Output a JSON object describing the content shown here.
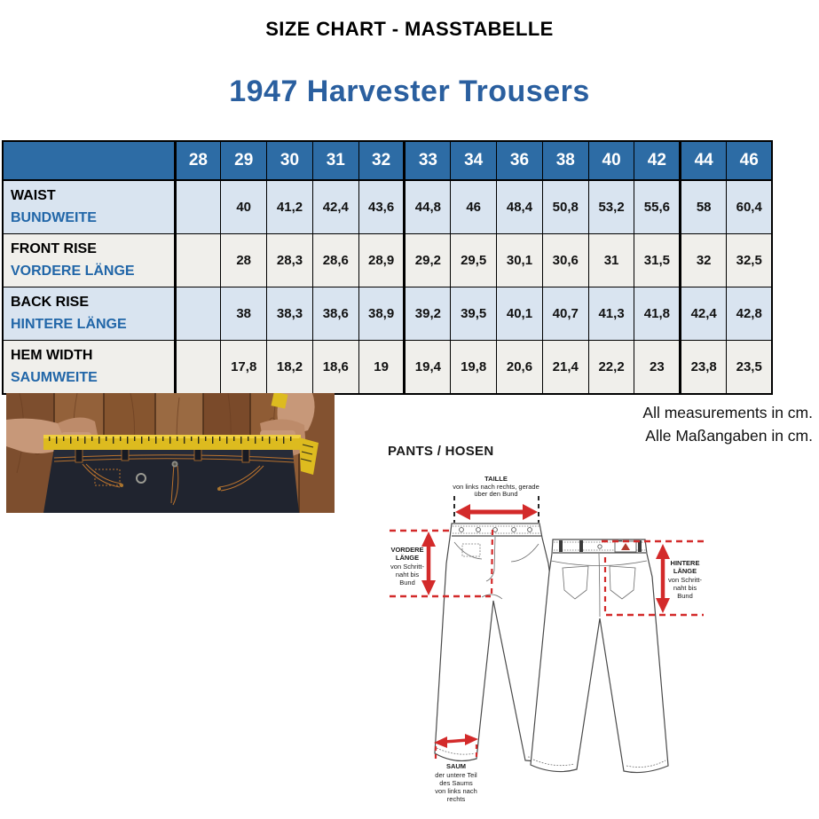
{
  "page": {
    "title": "SIZE CHART - MASSTABELLE",
    "subtitle": "1947 Harvester Trousers"
  },
  "colors": {
    "header_bg": "#2d6ca5",
    "row_blue": "#d9e4f0",
    "row_gray": "#f0efeb",
    "label_blue": "#2166a8",
    "title_blue": "#2a5f9f",
    "diagram_red": "#d32a2a",
    "tape_yellow": "#ddbb1f"
  },
  "table": {
    "sizes": [
      "28",
      "29",
      "30",
      "31",
      "32",
      "33",
      "34",
      "36",
      "38",
      "40",
      "42",
      "44",
      "46"
    ],
    "rows": [
      {
        "label_en": "WAIST",
        "label_de": "BUNDWEITE",
        "values": [
          "",
          "40",
          "41,2",
          "42,4",
          "43,6",
          "44,8",
          "46",
          "48,4",
          "50,8",
          "53,2",
          "55,6",
          "58",
          "60,4"
        ]
      },
      {
        "label_en": "FRONT RISE",
        "label_de": "VORDERE LÄNGE",
        "values": [
          "",
          "28",
          "28,3",
          "28,6",
          "28,9",
          "29,2",
          "29,5",
          "30,1",
          "30,6",
          "31",
          "31,5",
          "32",
          "32,5"
        ]
      },
      {
        "label_en": "BACK RISE",
        "label_de": "HINTERE LÄNGE",
        "values": [
          "",
          "38",
          "38,3",
          "38,6",
          "38,9",
          "39,2",
          "39,5",
          "40,1",
          "40,7",
          "41,3",
          "41,8",
          "42,4",
          "42,8"
        ]
      },
      {
        "label_en": "HEM WIDTH",
        "label_de": "SAUMWEITE",
        "values": [
          "",
          "17,8",
          "18,2",
          "18,6",
          "19",
          "19,4",
          "19,8",
          "20,6",
          "21,4",
          "22,2",
          "23",
          "23,8",
          "23,5"
        ]
      }
    ]
  },
  "notes": {
    "line1": "All measurements in cm.",
    "line2": "Alle Maßangaben in cm."
  },
  "diagram": {
    "heading": "PANTS / HOSEN",
    "taille": [
      "TAILLE",
      "von links nach rechts, gerade",
      "über den Bund"
    ],
    "vordere": [
      "VORDERE",
      "LÄNGE",
      "von Schritt-",
      "naht bis",
      "Bund"
    ],
    "hintere": [
      "HINTERE",
      "LÄNGE",
      "von Schritt-",
      "naht bis",
      "Bund"
    ],
    "saum": [
      "SAUM",
      "der untere Teil",
      "des Saums",
      "von links nach",
      "rechts"
    ]
  }
}
